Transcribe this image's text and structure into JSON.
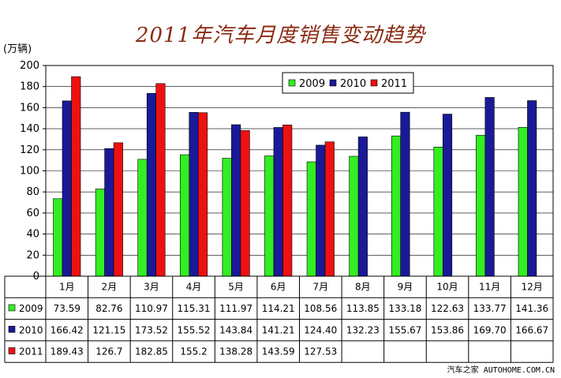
{
  "title": "2011年汽车月度销售变动趋势",
  "watermark": "汽车之家 AUTOHOME.COM.CN",
  "chart_data": {
    "type": "bar",
    "title": "2011年汽车月度销售变动趋势",
    "unit_label": "(万辆)",
    "categories": [
      "1月",
      "2月",
      "3月",
      "4月",
      "5月",
      "6月",
      "7月",
      "8月",
      "9月",
      "10月",
      "11月",
      "12月"
    ],
    "ylim": [
      0,
      200
    ],
    "yticks": [
      0,
      20,
      40,
      60,
      80,
      100,
      120,
      140,
      160,
      180,
      200
    ],
    "ytick_labels": [
      "0",
      "20",
      "40",
      "60",
      "80",
      "100",
      "120",
      "140",
      "160",
      "180",
      "200"
    ],
    "grid": true,
    "legend_position": "top-center",
    "series": [
      {
        "name": "2009",
        "color": "#33ee22",
        "values": [
          73.59,
          82.76,
          110.97,
          115.31,
          111.97,
          114.21,
          108.56,
          113.85,
          133.18,
          122.63,
          133.77,
          141.36
        ],
        "table_values": [
          "73.59",
          "82.76",
          "110.97",
          "115.31",
          "111.97",
          "114.21",
          "108.56",
          "113.85",
          "133.18",
          "122.63",
          "133.77",
          "141.36"
        ]
      },
      {
        "name": "2010",
        "color": "#1a1a99",
        "values": [
          166.42,
          121.15,
          173.52,
          155.52,
          143.84,
          141.21,
          124.4,
          132.23,
          155.67,
          153.86,
          169.7,
          166.67
        ],
        "table_values": [
          "166.42",
          "121.15",
          "173.52",
          "155.52",
          "143.84",
          "141.21",
          "124.40",
          "132.23",
          "155.67",
          "153.86",
          "169.70",
          "166.67"
        ]
      },
      {
        "name": "2011",
        "color": "#ee1111",
        "values": [
          189.43,
          126.7,
          182.85,
          155.2,
          138.28,
          143.59,
          127.53,
          null,
          null,
          null,
          null,
          null
        ],
        "table_values": [
          "189.43",
          "126.7",
          "182.85",
          "155.2",
          "138.28",
          "143.59",
          "127.53",
          "",
          "",
          "",
          "",
          ""
        ]
      }
    ]
  }
}
